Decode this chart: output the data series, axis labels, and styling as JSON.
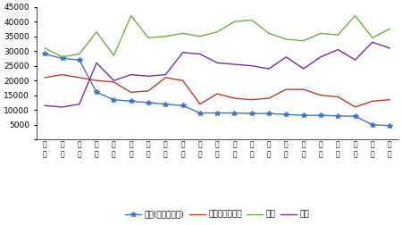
{
  "cities": [
    "深\n圳",
    "广\n州",
    "珠\n海",
    "佛\n山",
    "中\n山",
    "东\n莞",
    "惠\n州",
    "江\n门",
    "韶\n关",
    "清\n远",
    "阳\n江",
    "湛\n江",
    "肇\n庆",
    "河\n源",
    "梅\n州",
    "汕\n头",
    "茂\n名",
    "潮\n州",
    "云\n浮",
    "汕\n尾",
    "揭\n阳"
  ],
  "university": [
    29000,
    27500,
    27000,
    16000,
    13500,
    13000,
    12500,
    12000,
    11500,
    9000,
    9000,
    9000,
    8800,
    8800,
    8500,
    8200,
    8200,
    8000,
    7900,
    5000,
    4700
  ],
  "high_school": [
    21000,
    22000,
    21000,
    20000,
    19500,
    16000,
    16500,
    21000,
    20000,
    12000,
    15500,
    14000,
    13500,
    14000,
    17000,
    17000,
    15000,
    14500,
    11000,
    13000,
    13500
  ],
  "middle_school": [
    31000,
    28000,
    29000,
    36500,
    28500,
    42000,
    34500,
    35000,
    36000,
    35000,
    36500,
    40000,
    40500,
    36000,
    34000,
    33500,
    36000,
    35500,
    42000,
    34500,
    37500
  ],
  "primary_school": [
    11500,
    11000,
    12000,
    26000,
    20000,
    22000,
    21500,
    22000,
    29500,
    29000,
    26000,
    25500,
    25000,
    24000,
    28000,
    24000,
    28000,
    30500,
    27000,
    33000,
    31000
  ],
  "university_color": "#4472c4",
  "high_school_color": "#c0392b",
  "middle_school_color": "#70ad47",
  "primary_school_color": "#7030a0",
  "ylim": [
    0,
    45000
  ],
  "yticks": [
    0,
    5000,
    10000,
    15000,
    20000,
    25000,
    30000,
    35000,
    40000,
    45000
  ],
  "legend_labels": [
    "大学(大专及以上)",
    "高中（含中专）",
    "初中",
    "小学"
  ]
}
